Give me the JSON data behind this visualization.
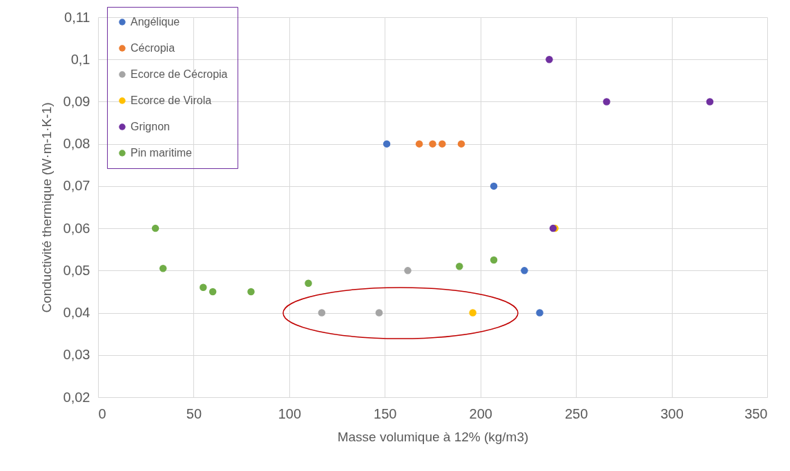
{
  "chart_data": {
    "type": "scatter",
    "xlabel": "Masse volumique à 12% (kg/m3)",
    "ylabel": "Conductivité thermique (W·m-1·K-1)",
    "xlim": [
      0,
      350
    ],
    "xticks": [
      0,
      50,
      100,
      150,
      200,
      250,
      300,
      350
    ],
    "ylim": [
      0.02,
      0.11
    ],
    "yticks": [
      {
        "value": 0.02,
        "label": "0,02"
      },
      {
        "value": 0.03,
        "label": "0,03"
      },
      {
        "value": 0.04,
        "label": "0,04"
      },
      {
        "value": 0.05,
        "label": "0,05"
      },
      {
        "value": 0.06,
        "label": "0,06"
      },
      {
        "value": 0.07,
        "label": "0,07"
      },
      {
        "value": 0.08,
        "label": "0,08"
      },
      {
        "value": 0.09,
        "label": "0,09"
      },
      {
        "value": 0.1,
        "label": "0,1"
      },
      {
        "value": 0.11,
        "label": "0,11"
      }
    ],
    "grid": true,
    "legend": "top left",
    "marker": "circle",
    "series": [
      {
        "name": "Angélique",
        "color": "#4472c4",
        "x": [
          151,
          207,
          223,
          231
        ],
        "values": [
          0.08,
          0.07,
          0.05,
          0.04
        ]
      },
      {
        "name": "Cécropia",
        "color": "#ed7d31",
        "x": [
          168,
          175,
          180,
          190
        ],
        "values": [
          0.08,
          0.08,
          0.08,
          0.08
        ]
      },
      {
        "name": "Ecorce de Cécropia",
        "color": "#a5a5a5",
        "x": [
          117,
          147,
          162
        ],
        "values": [
          0.04,
          0.04,
          0.05
        ]
      },
      {
        "name": "Ecorce de Virola",
        "color": "#ffc000",
        "x": [
          196,
          239
        ],
        "values": [
          0.04,
          0.06
        ]
      },
      {
        "name": "Grignon",
        "color": "#7030a0",
        "x": [
          236,
          266,
          320,
          238
        ],
        "values": [
          0.1,
          0.09,
          0.09,
          0.06
        ]
      },
      {
        "name": "Pin maritime",
        "color": "#70ad47",
        "x": [
          30,
          34,
          55,
          60,
          80,
          110,
          189,
          207
        ],
        "values": [
          0.06,
          0.0505,
          0.046,
          0.045,
          0.045,
          0.047,
          0.051,
          0.0525
        ]
      }
    ]
  }
}
